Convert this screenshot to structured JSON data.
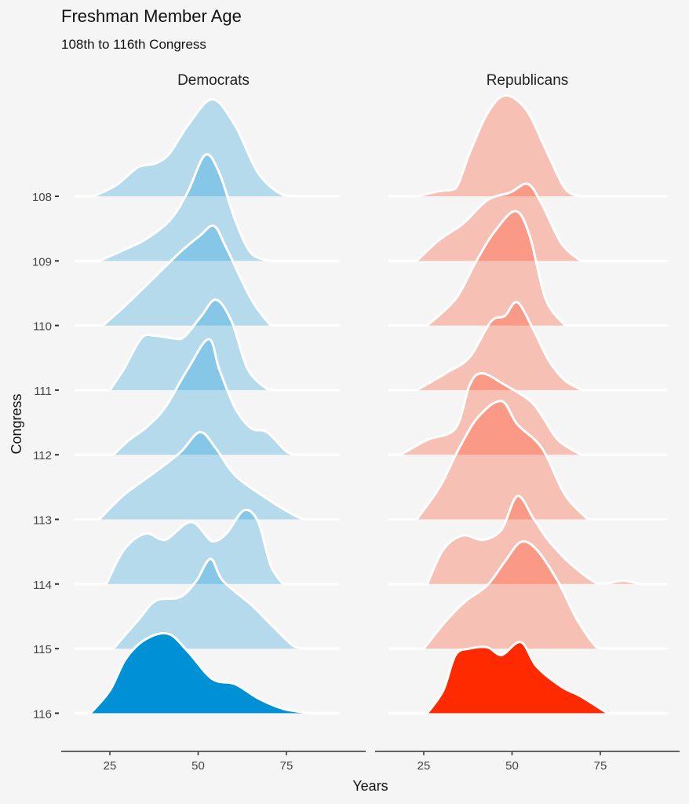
{
  "chart_data": {
    "type": "ridgeline",
    "title": "Freshman Member Age",
    "subtitle": "108th to 116th Congress",
    "xlabel": "Years",
    "ylabel": "Congress",
    "xticks": [
      25,
      50,
      75
    ],
    "categories": [
      "108",
      "109",
      "110",
      "111",
      "112",
      "113",
      "114",
      "115",
      "116"
    ],
    "highlight_category": "116",
    "grid": false,
    "panels": [
      {
        "name": "Democrats",
        "color": "#0090d5",
        "xrange": [
          15,
          90
        ],
        "ridges": {
          "108": [
            [
              20.5,
              0
            ],
            [
              27,
              0.18
            ],
            [
              33,
              0.45
            ],
            [
              38,
              0.51
            ],
            [
              42,
              0.67
            ],
            [
              47,
              1.09
            ],
            [
              54,
              1.5
            ],
            [
              60.5,
              1.09
            ],
            [
              67,
              0.36
            ],
            [
              74,
              0.02
            ],
            [
              80,
              0
            ]
          ],
          "109": [
            [
              22,
              0
            ],
            [
              29,
              0.17
            ],
            [
              35,
              0.33
            ],
            [
              42,
              0.63
            ],
            [
              47,
              1.06
            ],
            [
              52,
              1.64
            ],
            [
              56,
              1.36
            ],
            [
              60.5,
              0.63
            ],
            [
              65,
              0.12
            ],
            [
              70.5,
              0
            ]
          ],
          "110": [
            [
              23,
              0
            ],
            [
              29,
              0.29
            ],
            [
              36,
              0.66
            ],
            [
              45,
              1.14
            ],
            [
              50.5,
              1.39
            ],
            [
              54.5,
              1.54
            ],
            [
              58,
              1.2
            ],
            [
              65,
              0.41
            ],
            [
              70.5,
              0
            ]
          ],
          "111": [
            [
              25,
              0
            ],
            [
              29,
              0.33
            ],
            [
              34,
              0.81
            ],
            [
              38,
              0.84
            ],
            [
              45,
              0.79
            ],
            [
              50.5,
              1.12
            ],
            [
              55,
              1.4
            ],
            [
              59.5,
              1.06
            ],
            [
              64,
              0.33
            ],
            [
              69.5,
              0.02
            ],
            [
              72,
              0
            ]
          ],
          "112": [
            [
              26,
              0
            ],
            [
              30.5,
              0.23
            ],
            [
              35,
              0.41
            ],
            [
              40.5,
              0.72
            ],
            [
              47,
              1.32
            ],
            [
              53,
              1.79
            ],
            [
              56,
              1.32
            ],
            [
              60.5,
              0.72
            ],
            [
              65,
              0.41
            ],
            [
              69.5,
              0.35
            ],
            [
              75,
              0.05
            ],
            [
              78,
              0
            ]
          ],
          "113": [
            [
              22,
              0
            ],
            [
              29,
              0.38
            ],
            [
              38,
              0.74
            ],
            [
              45,
              1.04
            ],
            [
              50.5,
              1.35
            ],
            [
              55,
              1.1
            ],
            [
              60.5,
              0.68
            ],
            [
              69.5,
              0.32
            ],
            [
              77,
              0.07
            ],
            [
              80,
              0
            ]
          ],
          "114": [
            [
              24,
              0
            ],
            [
              29,
              0.53
            ],
            [
              35,
              0.78
            ],
            [
              40.5,
              0.68
            ],
            [
              48,
              0.96
            ],
            [
              54,
              0.66
            ],
            [
              58,
              0.78
            ],
            [
              63,
              1.14
            ],
            [
              67,
              0.96
            ],
            [
              70.5,
              0.29
            ],
            [
              74,
              0
            ]
          ],
          "115": [
            [
              26,
              0
            ],
            [
              33,
              0.44
            ],
            [
              38,
              0.74
            ],
            [
              45,
              0.8
            ],
            [
              49.5,
              1.05
            ],
            [
              53.5,
              1.39
            ],
            [
              57,
              1.05
            ],
            [
              65,
              0.68
            ],
            [
              70.5,
              0.38
            ],
            [
              77,
              0.04
            ],
            [
              80,
              0
            ]
          ],
          "116": [
            [
              19.5,
              0
            ],
            [
              25,
              0.35
            ],
            [
              29.5,
              0.84
            ],
            [
              35,
              1.14
            ],
            [
              41.5,
              1.23
            ],
            [
              47,
              0.96
            ],
            [
              54,
              0.53
            ],
            [
              60.5,
              0.45
            ],
            [
              67,
              0.23
            ],
            [
              74,
              0.07
            ],
            [
              82,
              0
            ]
          ]
        }
      },
      {
        "name": "Republicans",
        "color": "#ff2a00",
        "xrange": [
          15,
          94
        ],
        "ridges": {
          "108": [
            [
              23,
              0
            ],
            [
              29.5,
              0.08
            ],
            [
              34,
              0.12
            ],
            [
              38,
              0.67
            ],
            [
              43,
              1.28
            ],
            [
              48,
              1.56
            ],
            [
              54,
              1.34
            ],
            [
              59.5,
              0.73
            ],
            [
              65,
              0.12
            ],
            [
              69.5,
              0
            ]
          ],
          "109": [
            [
              23,
              0
            ],
            [
              29.5,
              0.33
            ],
            [
              36,
              0.57
            ],
            [
              43,
              0.94
            ],
            [
              49.5,
              1.06
            ],
            [
              54.5,
              1.19
            ],
            [
              58.5,
              0.87
            ],
            [
              64,
              0.27
            ],
            [
              69.5,
              0
            ]
          ],
          "110": [
            [
              26,
              0
            ],
            [
              34,
              0.41
            ],
            [
              39.5,
              0.96
            ],
            [
              45,
              1.45
            ],
            [
              51,
              1.77
            ],
            [
              55,
              1.39
            ],
            [
              59.5,
              0.41
            ],
            [
              65,
              0
            ]
          ],
          "111": [
            [
              23,
              0
            ],
            [
              31.5,
              0.27
            ],
            [
              38,
              0.51
            ],
            [
              44,
              1.06
            ],
            [
              48,
              1.15
            ],
            [
              51.5,
              1.36
            ],
            [
              56,
              0.94
            ],
            [
              60.5,
              0.45
            ],
            [
              65,
              0.15
            ],
            [
              70,
              0
            ]
          ],
          "112": [
            [
              18.5,
              0
            ],
            [
              26,
              0.23
            ],
            [
              34,
              0.41
            ],
            [
              38,
              1.08
            ],
            [
              41.5,
              1.26
            ],
            [
              48,
              1.08
            ],
            [
              55,
              0.84
            ],
            [
              58.5,
              0.6
            ],
            [
              63,
              0.23
            ],
            [
              69.5,
              0
            ]
          ],
          "113": [
            [
              23,
              0
            ],
            [
              29.5,
              0.5
            ],
            [
              35,
              1.1
            ],
            [
              40.5,
              1.59
            ],
            [
              47,
              1.83
            ],
            [
              51.5,
              1.47
            ],
            [
              58.5,
              1.1
            ],
            [
              65,
              0.38
            ],
            [
              71.5,
              0
            ]
          ],
          "114": [
            [
              26,
              0
            ],
            [
              30.5,
              0.53
            ],
            [
              36,
              0.75
            ],
            [
              41.5,
              0.68
            ],
            [
              47,
              0.84
            ],
            [
              51.5,
              1.36
            ],
            [
              56,
              1.02
            ],
            [
              60.5,
              0.66
            ],
            [
              67,
              0.29
            ],
            [
              74,
              0.01
            ],
            [
              77,
              0.01
            ],
            [
              81.5,
              0.05
            ],
            [
              86,
              0
            ]
          ],
          "115": [
            [
              25,
              0
            ],
            [
              31.5,
              0.44
            ],
            [
              37,
              0.74
            ],
            [
              43,
              0.98
            ],
            [
              48,
              1.35
            ],
            [
              52.5,
              1.65
            ],
            [
              57,
              1.53
            ],
            [
              63,
              1.04
            ],
            [
              68.5,
              0.44
            ],
            [
              74,
              0.02
            ],
            [
              77,
              0
            ]
          ],
          "116": [
            [
              26,
              0
            ],
            [
              30.5,
              0.35
            ],
            [
              34,
              0.9
            ],
            [
              38,
              1.0
            ],
            [
              43,
              1.02
            ],
            [
              47,
              0.9
            ],
            [
              52.5,
              1.1
            ],
            [
              57,
              0.72
            ],
            [
              64,
              0.41
            ],
            [
              69.5,
              0.26
            ],
            [
              77,
              0
            ]
          ]
        }
      }
    ]
  }
}
